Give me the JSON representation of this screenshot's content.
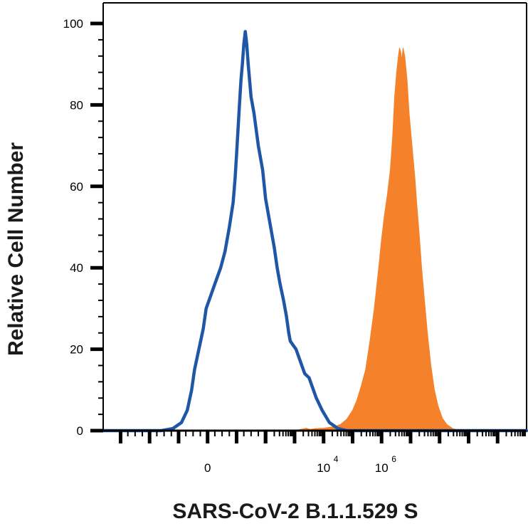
{
  "chart_data": {
    "type": "area",
    "title": "",
    "xlabel": "SARS-CoV-2 B.1.1.529 S",
    "ylabel": "Relative Cell Number",
    "x_scale": "biexponential",
    "ylim": [
      0,
      100
    ],
    "grid": false,
    "y_ticks": [
      {
        "value": 0,
        "label": "0"
      },
      {
        "value": 20,
        "label": "20"
      },
      {
        "value": 40,
        "label": "40"
      },
      {
        "value": 60,
        "label": "60"
      },
      {
        "value": 80,
        "label": "80"
      },
      {
        "value": 100,
        "label": "100"
      }
    ],
    "x_ticks": [
      {
        "pos": 0.0,
        "base": "0",
        "exp": ""
      },
      {
        "pos": 4.0,
        "base": "10",
        "exp": "4"
      },
      {
        "pos": 6.0,
        "base": "10",
        "exp": "6"
      }
    ],
    "xlim": [
      -3.6,
      11.0
    ],
    "series": [
      {
        "role": "control",
        "style": "outline",
        "color": "#1f56a6",
        "points": [
          [
            -3.6,
            0
          ],
          [
            -1.6,
            0
          ],
          [
            -1.2,
            0.5
          ],
          [
            -0.9,
            2
          ],
          [
            -0.7,
            5
          ],
          [
            -0.55,
            10
          ],
          [
            -0.45,
            15
          ],
          [
            -0.3,
            20
          ],
          [
            -0.15,
            25
          ],
          [
            -0.05,
            30
          ],
          [
            0.1,
            33
          ],
          [
            0.3,
            37
          ],
          [
            0.45,
            40
          ],
          [
            0.6,
            44
          ],
          [
            0.75,
            50
          ],
          [
            0.88,
            56
          ],
          [
            0.95,
            62
          ],
          [
            1.0,
            68
          ],
          [
            1.05,
            74
          ],
          [
            1.1,
            80
          ],
          [
            1.15,
            86
          ],
          [
            1.2,
            90
          ],
          [
            1.25,
            95
          ],
          [
            1.3,
            98
          ],
          [
            1.35,
            95
          ],
          [
            1.4,
            90
          ],
          [
            1.5,
            82
          ],
          [
            1.6,
            78
          ],
          [
            1.75,
            70
          ],
          [
            1.9,
            64
          ],
          [
            2.0,
            57
          ],
          [
            2.15,
            51
          ],
          [
            2.3,
            45
          ],
          [
            2.4,
            40
          ],
          [
            2.5,
            36
          ],
          [
            2.62,
            32
          ],
          [
            2.72,
            28
          ],
          [
            2.8,
            24
          ],
          [
            2.85,
            22
          ],
          [
            2.95,
            21
          ],
          [
            3.05,
            20
          ],
          [
            3.2,
            17
          ],
          [
            3.35,
            14
          ],
          [
            3.5,
            13
          ],
          [
            3.6,
            11
          ],
          [
            3.75,
            8
          ],
          [
            3.95,
            5
          ],
          [
            4.2,
            2
          ],
          [
            4.5,
            0.5
          ],
          [
            4.8,
            0
          ],
          [
            11.0,
            0
          ]
        ]
      },
      {
        "role": "stained",
        "style": "filled",
        "color": "#f5822a",
        "points": [
          [
            -3.6,
            0
          ],
          [
            3.0,
            0
          ],
          [
            3.2,
            0.3
          ],
          [
            3.4,
            0.6
          ],
          [
            3.55,
            0.3
          ],
          [
            3.7,
            0.5
          ],
          [
            4.0,
            0.6
          ],
          [
            4.2,
            0.8
          ],
          [
            4.4,
            1
          ],
          [
            4.6,
            1.6
          ],
          [
            4.8,
            2.8
          ],
          [
            5.0,
            5
          ],
          [
            5.15,
            7.5
          ],
          [
            5.3,
            11
          ],
          [
            5.45,
            15
          ],
          [
            5.6,
            22
          ],
          [
            5.75,
            30
          ],
          [
            5.9,
            40
          ],
          [
            6.0,
            47
          ],
          [
            6.1,
            53
          ],
          [
            6.2,
            58
          ],
          [
            6.3,
            64
          ],
          [
            6.38,
            72
          ],
          [
            6.45,
            82
          ],
          [
            6.52,
            88
          ],
          [
            6.58,
            92
          ],
          [
            6.62,
            94
          ],
          [
            6.66,
            93
          ],
          [
            6.7,
            91
          ],
          [
            6.74,
            94
          ],
          [
            6.8,
            92
          ],
          [
            6.88,
            86
          ],
          [
            6.95,
            78
          ],
          [
            7.05,
            70
          ],
          [
            7.15,
            62
          ],
          [
            7.22,
            55
          ],
          [
            7.3,
            48
          ],
          [
            7.38,
            40
          ],
          [
            7.48,
            32
          ],
          [
            7.58,
            24
          ],
          [
            7.7,
            16
          ],
          [
            7.82,
            10
          ],
          [
            7.95,
            6
          ],
          [
            8.1,
            3
          ],
          [
            8.25,
            1.5
          ],
          [
            8.45,
            0.5
          ],
          [
            8.7,
            0
          ],
          [
            11.0,
            0
          ]
        ]
      }
    ]
  }
}
